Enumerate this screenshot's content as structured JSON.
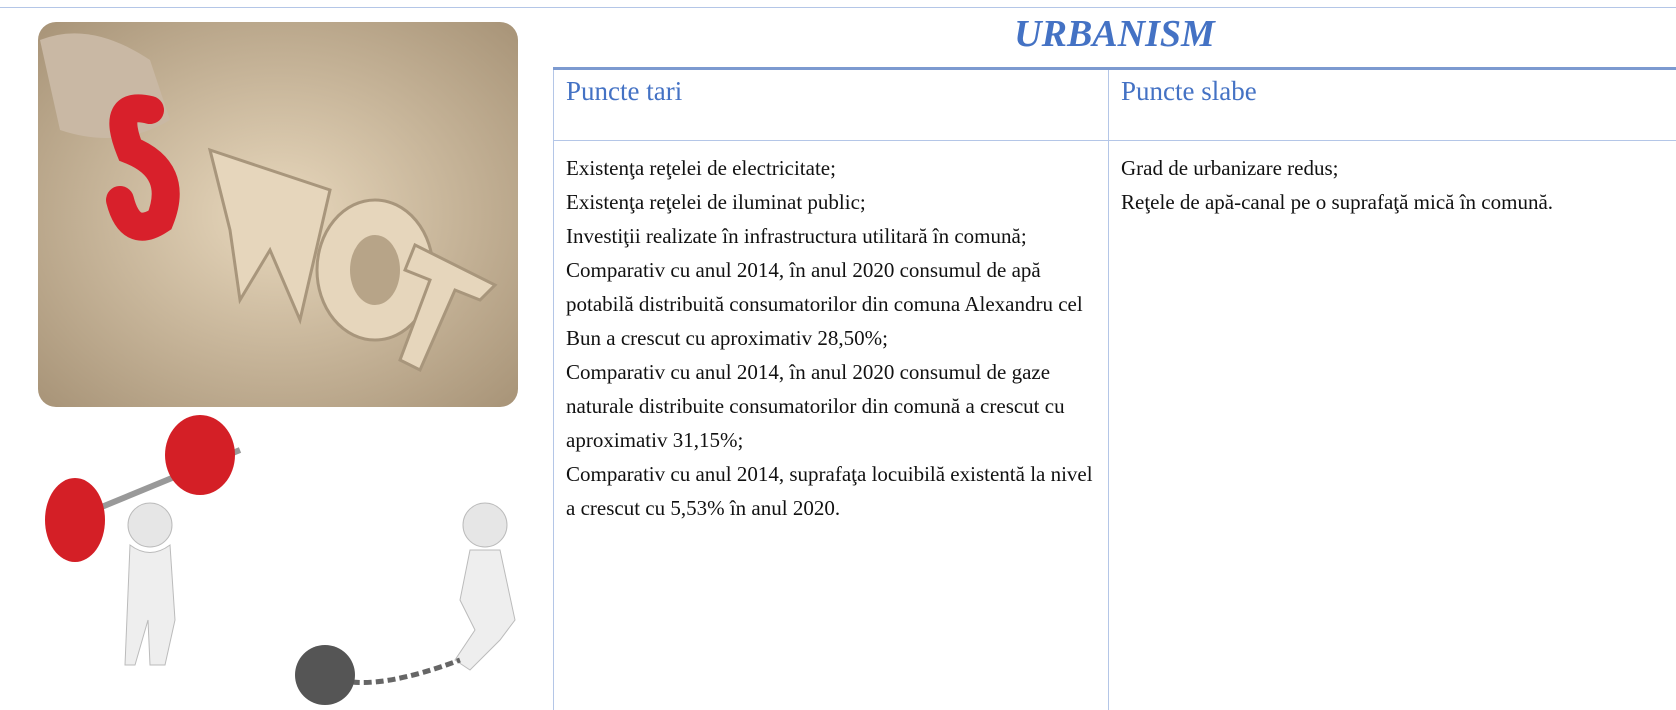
{
  "table": {
    "title": "URBANISM",
    "headers": [
      "Puncte tari",
      "Puncte slabe"
    ],
    "strengths": [
      "Existenţa reţelei de electricitate;",
      "Existenţa reţelei de iluminat public;",
      "Investiţii realizate  în infrastructura utilitară  în comună;",
      "Comparativ cu anul 2014, în anul 2020 consumul de apă potabilă distribuită consumatorilor din comuna Alexandru cel Bun  a crescut  cu aproximativ 28,50%;",
      "Comparativ cu anul 2014, în anul 2020 consumul de gaze naturale  distribuite consumatorilor din comună  a crescut  cu aproximativ  31,15%;",
      "Comparativ cu anul 2014, suprafaţa locuibilă existentă la nivel a crescut cu 5,53% în anul 2020."
    ],
    "weaknesses": [
      "Grad de urbanizare redus;",
      "Reţele de apă-canal pe o suprafaţă mică în comună."
    ]
  }
}
